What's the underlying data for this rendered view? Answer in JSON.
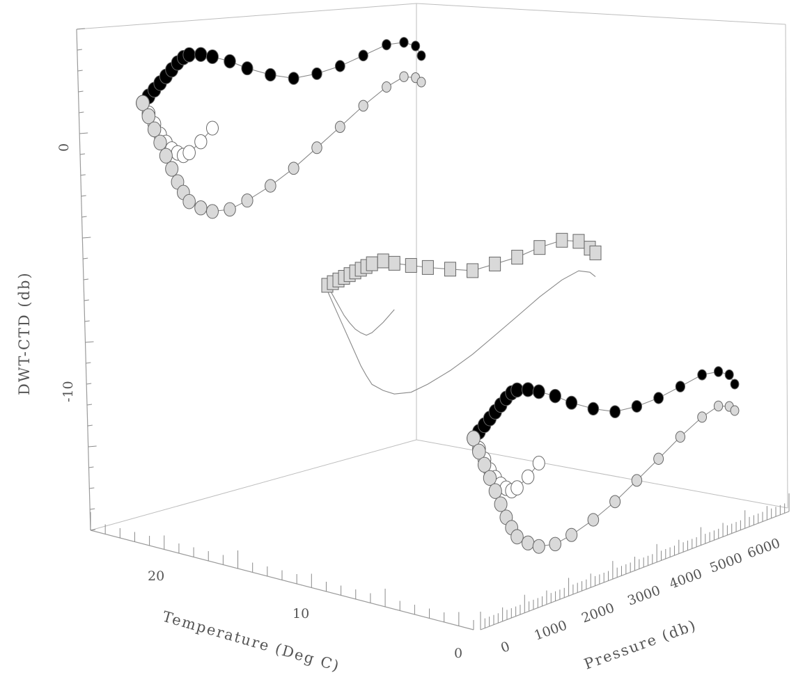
{
  "chart_data": {
    "type": "scatter",
    "title": "",
    "zlabel": "DWT-CTD (db)",
    "xlabel": "Temperature (Deg C)",
    "ylabel": "Pressure (db)",
    "z_ticks": [
      "0",
      "-10"
    ],
    "temperature_ticks": [
      "20",
      "10",
      "0"
    ],
    "pressure_ticks": [
      "0",
      "1000",
      "2000",
      "3000",
      "4000",
      "5000",
      "6000"
    ],
    "series": [
      {
        "marker": "square",
        "color": "#d9d9d9",
        "temperature": [
          26,
          25.5,
          25,
          24.5,
          24,
          23.5,
          23,
          22.5,
          22,
          21,
          20,
          18.5,
          17,
          15,
          13,
          11,
          9,
          7,
          5,
          3.5,
          2.5,
          2
        ],
        "pressure": [
          0,
          50,
          100,
          150,
          200,
          250,
          300,
          350,
          400,
          500,
          600,
          700,
          800,
          1000,
          1200,
          1500,
          2000,
          2500,
          3000,
          3500,
          4500,
          5500
        ],
        "dwt_ctd": [
          0,
          0.2,
          0.4,
          0.6,
          0.8,
          1,
          1.2,
          1.4,
          1.6,
          1.8,
          1.6,
          1.4,
          1.2,
          1,
          0.8,
          1.2,
          1.6,
          2.2,
          2.6,
          2.4,
          1.8,
          1.4
        ]
      },
      {
        "marker": "circle",
        "color": "#000000",
        "temperature": [
          26,
          25.5,
          25,
          24.5,
          24,
          23.5,
          23,
          22.5,
          22,
          21,
          20,
          18.5,
          17,
          15,
          13,
          11,
          9,
          7,
          5,
          3.5,
          2.5,
          2
        ],
        "dwt_ctd": [
          0,
          0.5,
          1,
          1.5,
          2,
          2.5,
          3,
          3.4,
          3.6,
          3.6,
          3.4,
          3,
          2.4,
          1.8,
          1.4,
          1.6,
          2,
          2.6,
          3.2,
          3.2,
          2.8,
          2
        ]
      },
      {
        "marker": "circle",
        "color": "#ffffff",
        "temperature": [
          26,
          25.5,
          25,
          24.5,
          24,
          23.5,
          23,
          22.5,
          22,
          21,
          20
        ],
        "dwt_ctd": [
          0,
          -0.8,
          -1.6,
          -2.4,
          -3,
          -3.5,
          -3.8,
          -4,
          -3.8,
          -3,
          -2
        ]
      },
      {
        "marker": "circle",
        "color": "#d9d9d9",
        "temperature": [
          26,
          25.5,
          25,
          24.5,
          24,
          23.5,
          23,
          22.5,
          22,
          21,
          20,
          18.5,
          17,
          15,
          13,
          11,
          9,
          7,
          5,
          3.5,
          2.5,
          2
        ],
        "dwt_ctd": [
          0,
          -1,
          -2,
          -3,
          -4,
          -5,
          -6,
          -6.8,
          -7.5,
          -8,
          -8.3,
          -8.2,
          -7.6,
          -6.6,
          -5.4,
          -4,
          -2.6,
          -1.2,
          0,
          0.6,
          0.4,
          0
        ]
      }
    ]
  }
}
